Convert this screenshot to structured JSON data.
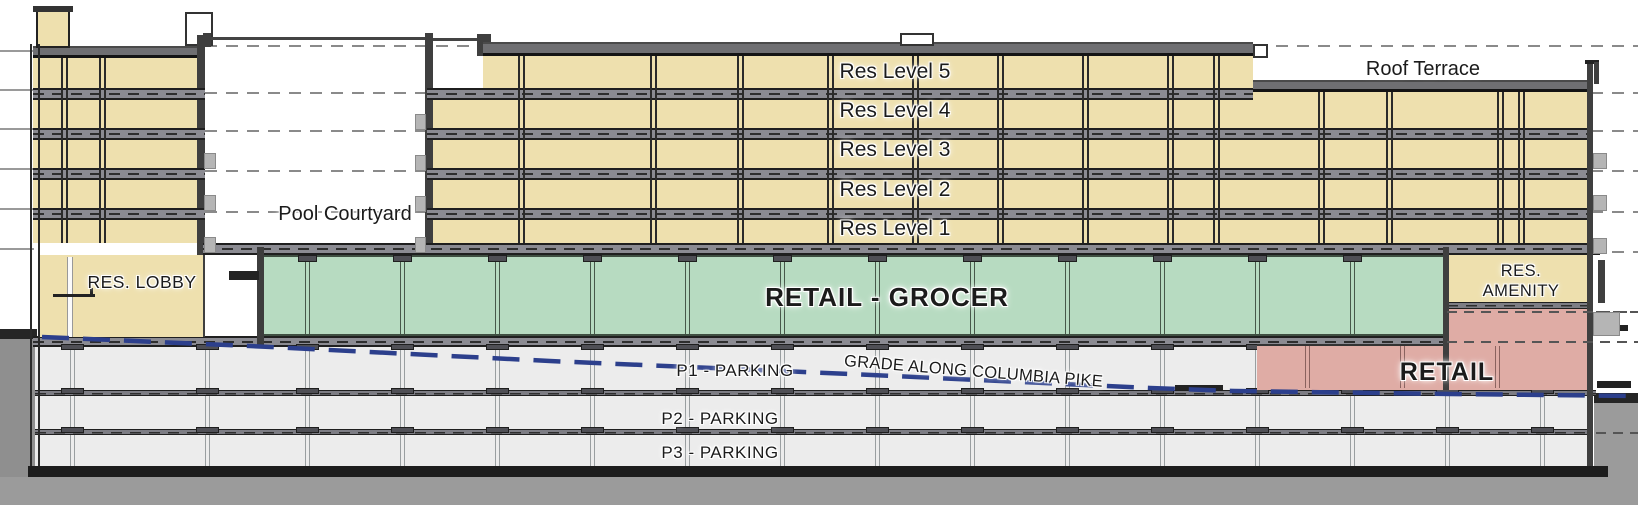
{
  "diagram": {
    "type": "building-section",
    "floors": {
      "residential": [
        "Res Level 5",
        "Res Level 4",
        "Res Level 3",
        "Res Level 2",
        "Res Level 1"
      ],
      "parking": [
        "P1 - PARKING",
        "P2 - PARKING",
        "P3 - PARKING"
      ]
    },
    "labels": {
      "pool_courtyard": "Pool Courtyard",
      "roof_terrace": "Roof Terrace",
      "res_lobby": "RES. LOBBY",
      "retail_grocer": "RETAIL - GROCER",
      "res_amenity_line1": "RES.",
      "res_amenity_line2": "AMENITY",
      "retail": "RETAIL",
      "grade_line": "GRADE ALONG COLUMBIA PIKE"
    },
    "colors": {
      "residential_tan": "#eee0ae",
      "retail_green": "#b7dbc1",
      "retail_pink": "#dfaca5",
      "parking_gray": "#ececec",
      "earth_gray": "#9b9b9b",
      "slab_gray": "#8b8b92",
      "grade_blue": "#2c3f8c"
    }
  }
}
